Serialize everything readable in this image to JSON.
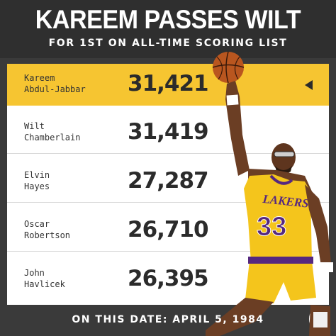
{
  "header": {
    "title": "KAREEM PASSES WILT",
    "subtitle": "FOR 1ST ON ALL-TIME SCORING LIST"
  },
  "leaderboard": {
    "rows": [
      {
        "name": "Kareem\nAbdul-Jabbar",
        "points": "31,421",
        "highlighted": true
      },
      {
        "name": "Wilt\nChamberlain",
        "points": "31,419",
        "highlighted": false
      },
      {
        "name": "Elvin\nHayes",
        "points": "27,287",
        "highlighted": false
      },
      {
        "name": "Oscar\nRobertson",
        "points": "26,710",
        "highlighted": false
      },
      {
        "name": "John\nHavlicek",
        "points": "26,395",
        "highlighted": false
      }
    ]
  },
  "footer": {
    "date_line": "ON THIS DATE: APRIL 5, 1984"
  },
  "player_art": {
    "jersey_number": "33",
    "jersey_text": "LAKERS"
  },
  "colors": {
    "background": "#3a3a3a",
    "highlight": "#f6c531",
    "jersey_gold": "#f4c51c",
    "jersey_purple": "#55287f",
    "text_dark": "#2b2b2b"
  }
}
